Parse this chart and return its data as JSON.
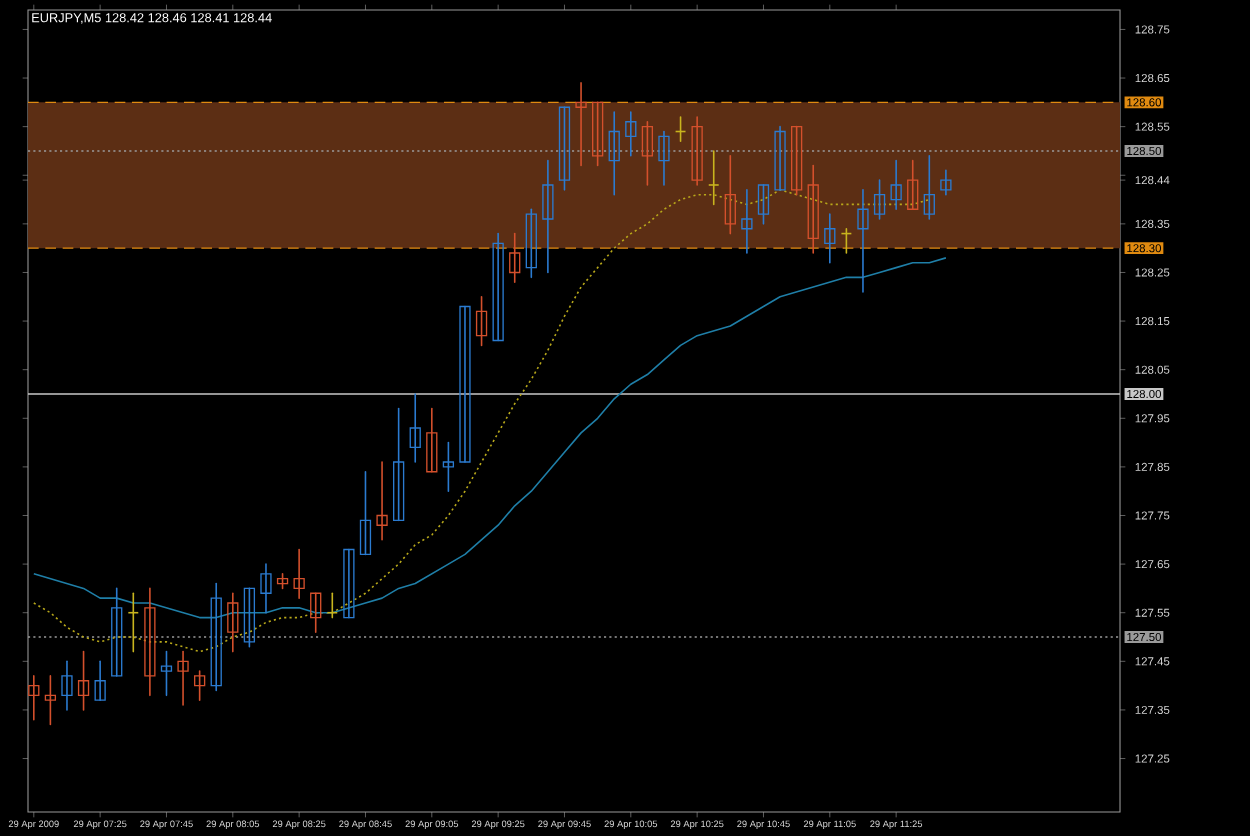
{
  "chart_data": {
    "type": "candlestick",
    "title": "EURJPY,M5  128.42 128.46 128.41 128.44",
    "categories": [
      "29 Apr 2009",
      null,
      null,
      null,
      "29 Apr 07:25",
      null,
      null,
      null,
      "29 Apr 07:45",
      null,
      null,
      null,
      "29 Apr 08:05",
      null,
      null,
      null,
      "29 Apr 08:25",
      null,
      null,
      null,
      "29 Apr 08:45",
      null,
      null,
      null,
      "29 Apr 09:05",
      null,
      null,
      null,
      "29 Apr 09:25",
      null,
      null,
      null,
      "29 Apr 09:45",
      null,
      null,
      null,
      "29 Apr 10:05",
      null,
      null,
      null,
      "29 Apr 10:25",
      null,
      null,
      null,
      "29 Apr 10:45",
      null,
      null,
      null,
      "29 Apr 11:05",
      null,
      null,
      null,
      "29 Apr 11:25",
      null,
      null,
      null
    ],
    "ohlc": [
      [
        127.4,
        127.42,
        127.33,
        127.38
      ],
      [
        127.38,
        127.42,
        127.32,
        127.37
      ],
      [
        127.38,
        127.45,
        127.35,
        127.42
      ],
      [
        127.41,
        127.47,
        127.35,
        127.38
      ],
      [
        127.37,
        127.45,
        127.37,
        127.41
      ],
      [
        127.42,
        127.6,
        127.42,
        127.56
      ],
      [
        127.55,
        127.59,
        127.47,
        127.55
      ],
      [
        127.56,
        127.6,
        127.38,
        127.42
      ],
      [
        127.43,
        127.47,
        127.38,
        127.44
      ],
      [
        127.45,
        127.47,
        127.36,
        127.43
      ],
      [
        127.42,
        127.43,
        127.37,
        127.4
      ],
      [
        127.4,
        127.61,
        127.39,
        127.58
      ],
      [
        127.57,
        127.59,
        127.47,
        127.51
      ],
      [
        127.49,
        127.6,
        127.48,
        127.6
      ],
      [
        127.59,
        127.65,
        127.55,
        127.63
      ],
      [
        127.62,
        127.63,
        127.6,
        127.61
      ],
      [
        127.62,
        127.68,
        127.58,
        127.6
      ],
      [
        127.59,
        127.59,
        127.51,
        127.54
      ],
      [
        127.55,
        127.59,
        127.54,
        127.55
      ],
      [
        127.54,
        127.68,
        127.54,
        127.68
      ],
      [
        127.67,
        127.84,
        127.67,
        127.74
      ],
      [
        127.75,
        127.86,
        127.7,
        127.73
      ],
      [
        127.74,
        127.97,
        127.74,
        127.86
      ],
      [
        127.89,
        128.0,
        127.86,
        127.93
      ],
      [
        127.92,
        127.97,
        127.84,
        127.84
      ],
      [
        127.85,
        127.9,
        127.8,
        127.86
      ],
      [
        127.86,
        128.18,
        127.86,
        128.18
      ],
      [
        128.17,
        128.2,
        128.1,
        128.12
      ],
      [
        128.11,
        128.33,
        128.11,
        128.31
      ],
      [
        128.29,
        128.33,
        128.23,
        128.25
      ],
      [
        128.26,
        128.38,
        128.24,
        128.37
      ],
      [
        128.36,
        128.48,
        128.25,
        128.43
      ],
      [
        128.44,
        128.59,
        128.42,
        128.59
      ],
      [
        128.6,
        128.64,
        128.47,
        128.59
      ],
      [
        128.6,
        128.6,
        128.47,
        128.49
      ],
      [
        128.48,
        128.58,
        128.41,
        128.54
      ],
      [
        128.53,
        128.58,
        128.49,
        128.56
      ],
      [
        128.55,
        128.56,
        128.43,
        128.49
      ],
      [
        128.48,
        128.54,
        128.43,
        128.53
      ],
      [
        128.54,
        128.57,
        128.52,
        128.54
      ],
      [
        128.55,
        128.57,
        128.43,
        128.44
      ],
      [
        128.43,
        128.5,
        128.39,
        128.43
      ],
      [
        128.41,
        128.49,
        128.33,
        128.35
      ],
      [
        128.34,
        128.42,
        128.29,
        128.36
      ],
      [
        128.37,
        128.43,
        128.35,
        128.43
      ],
      [
        128.42,
        128.55,
        128.42,
        128.54
      ],
      [
        128.55,
        128.55,
        128.41,
        128.42
      ],
      [
        128.43,
        128.47,
        128.29,
        128.32
      ],
      [
        128.31,
        128.37,
        128.27,
        128.34
      ],
      [
        128.33,
        128.34,
        128.29,
        128.33
      ],
      [
        128.34,
        128.42,
        128.21,
        128.38
      ],
      [
        128.37,
        128.44,
        128.36,
        128.41
      ],
      [
        128.4,
        128.48,
        128.38,
        128.43
      ],
      [
        128.44,
        128.48,
        128.38,
        128.38
      ],
      [
        128.37,
        128.49,
        128.36,
        128.41
      ],
      [
        128.42,
        128.46,
        128.41,
        128.44
      ]
    ],
    "colors": [
      "#d4502c",
      "#d4502c",
      "#2b7bd0",
      "#d4502c",
      "#2b7bd0",
      "#2b7bd0",
      "#c8b41e",
      "#d4502c",
      "#2b7bd0",
      "#d4502c",
      "#d4502c",
      "#2b7bd0",
      "#d4502c",
      "#2b7bd0",
      "#2b7bd0",
      "#d4502c",
      "#d4502c",
      "#d4502c",
      "#c8b41e",
      "#2b7bd0",
      "#2b7bd0",
      "#d4502c",
      "#2b7bd0",
      "#2b7bd0",
      "#d4502c",
      "#2b7bd0",
      "#2b7bd0",
      "#d4502c",
      "#2b7bd0",
      "#d4502c",
      "#2b7bd0",
      "#2b7bd0",
      "#2b7bd0",
      "#d4502c",
      "#d4502c",
      "#2b7bd0",
      "#2b7bd0",
      "#d4502c",
      "#2b7bd0",
      "#c8b41e",
      "#d4502c",
      "#c8b41e",
      "#d4502c",
      "#2b7bd0",
      "#2b7bd0",
      "#2b7bd0",
      "#d4502c",
      "#d4502c",
      "#2b7bd0",
      "#c8b41e",
      "#2b7bd0",
      "#2b7bd0",
      "#2b7bd0",
      "#d4502c",
      "#2b7bd0",
      "#2b7bd0"
    ],
    "series": [
      {
        "type": "line",
        "color": "#b8a81a",
        "line_style": "dotted",
        "values": [
          127.57,
          127.55,
          127.52,
          127.5,
          127.49,
          127.5,
          127.5,
          127.49,
          127.49,
          127.48,
          127.47,
          127.48,
          127.5,
          127.51,
          127.53,
          127.54,
          127.54,
          127.55,
          127.55,
          127.57,
          127.59,
          127.62,
          127.65,
          127.69,
          127.71,
          127.75,
          127.8,
          127.86,
          127.92,
          127.98,
          128.03,
          128.09,
          128.16,
          128.22,
          128.26,
          128.3,
          128.33,
          128.35,
          128.38,
          128.4,
          128.41,
          128.41,
          128.4,
          128.39,
          128.4,
          128.42,
          128.41,
          128.4,
          128.39,
          128.39,
          128.39,
          128.39,
          128.39,
          128.39,
          128.4,
          null
        ]
      },
      {
        "type": "line",
        "color": "#1f7fa8",
        "line_style": "solid",
        "values": [
          127.63,
          127.62,
          127.61,
          127.6,
          127.58,
          127.58,
          127.57,
          127.57,
          127.56,
          127.55,
          127.54,
          127.54,
          127.55,
          127.55,
          127.55,
          127.56,
          127.56,
          127.55,
          127.55,
          127.56,
          127.57,
          127.58,
          127.6,
          127.61,
          127.63,
          127.65,
          127.67,
          127.7,
          127.73,
          127.77,
          127.8,
          127.84,
          127.88,
          127.92,
          127.95,
          127.99,
          128.02,
          128.04,
          128.07,
          128.1,
          128.12,
          128.13,
          128.14,
          128.16,
          128.18,
          128.2,
          128.21,
          128.22,
          128.23,
          128.24,
          128.24,
          128.25,
          128.26,
          128.27,
          128.27,
          128.28
        ]
      }
    ],
    "ylim": [
      127.14,
      128.79
    ],
    "yticks": [
      127.25,
      127.35,
      127.45,
      127.55,
      127.65,
      127.75,
      127.85,
      127.95,
      128.05,
      128.15,
      128.25,
      128.35,
      {
        "value": 128.44,
        "label": "128.44"
      },
      {
        "value": 128.45,
        "label": null
      },
      128.55,
      128.65,
      128.75
    ],
    "bands": [
      {
        "axis": "y",
        "from": 128.3,
        "to": 128.6,
        "color": "#5c2e14"
      }
    ],
    "ref_lines": [
      {
        "axis": "y",
        "value": 128.6,
        "label": "128.60",
        "color": "#e08a10",
        "line_style": "dashed"
      },
      {
        "axis": "y",
        "value": 128.5,
        "label": "128.50",
        "color": "#9a9a9a",
        "line_style": "dotted"
      },
      {
        "axis": "y",
        "value": 128.3,
        "label": "128.30",
        "color": "#e08a10",
        "line_style": "dashed"
      },
      {
        "axis": "y",
        "value": 128.0,
        "label": "128.00",
        "color": "#c8c8c8",
        "line_style": "solid"
      },
      {
        "axis": "y",
        "value": 127.5,
        "label": "127.50",
        "color": "#9a9a9a",
        "line_style": "dotted"
      }
    ]
  }
}
